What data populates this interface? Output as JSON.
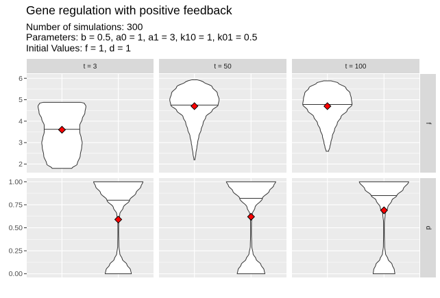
{
  "title": "Gene regulation with positive feedback",
  "subtitle_lines": [
    "Number of simulations: 300",
    "Parameters: b = 0.5, a0 = 1, a1 = 3, k10 = 1, k01 = 0.5",
    "Initial Values: f = 1, d = 1"
  ],
  "colors": {
    "panel_bg": "#ebebeb",
    "strip_bg": "#d9d9d9",
    "grid": "#ffffff",
    "violin_fill": "#ffffff",
    "violin_line": "#333333",
    "mean_marker": "#ff0000"
  },
  "chart_data": {
    "type": "violin",
    "facet_columns": [
      "t = 3",
      "t = 50",
      "t = 100"
    ],
    "facet_rows": [
      "f",
      "d"
    ],
    "rows": [
      {
        "name": "f",
        "ylim": [
          1.6,
          6.2
        ],
        "yticks": [
          2,
          3,
          4,
          5,
          6
        ],
        "ytick_labels": [
          "2",
          "3",
          "4",
          "5",
          "6"
        ],
        "x_position": "left",
        "panels": [
          {
            "column": "t = 3",
            "mean": 3.6,
            "median": 3.62,
            "profile": [
              [
                1.8,
                0.4
              ],
              [
                2.0,
                0.62
              ],
              [
                2.4,
                0.74
              ],
              [
                2.8,
                0.8
              ],
              [
                3.0,
                0.82
              ],
              [
                3.2,
                0.78
              ],
              [
                3.5,
                0.72
              ],
              [
                3.8,
                0.72
              ],
              [
                4.1,
                0.82
              ],
              [
                4.4,
                0.93
              ],
              [
                4.7,
                0.97
              ],
              [
                4.85,
                0.9
              ],
              [
                4.88,
                0.75
              ]
            ]
          },
          {
            "column": "t = 50",
            "mean": 4.7,
            "median": 4.75,
            "profile": [
              [
                2.2,
                0.02
              ],
              [
                2.5,
                0.06
              ],
              [
                2.8,
                0.1
              ],
              [
                3.0,
                0.13
              ],
              [
                3.3,
                0.18
              ],
              [
                3.6,
                0.27
              ],
              [
                3.9,
                0.35
              ],
              [
                4.2,
                0.46
              ],
              [
                4.5,
                0.72
              ],
              [
                4.75,
                0.96
              ],
              [
                5.0,
                1.0
              ],
              [
                5.3,
                0.93
              ],
              [
                5.6,
                0.72
              ],
              [
                5.85,
                0.35
              ],
              [
                5.93,
                0.1
              ]
            ]
          },
          {
            "column": "t = 100",
            "mean": 4.7,
            "median": 4.78,
            "profile": [
              [
                2.6,
                0.05
              ],
              [
                2.8,
                0.1
              ],
              [
                3.0,
                0.14
              ],
              [
                3.3,
                0.2
              ],
              [
                3.6,
                0.29
              ],
              [
                3.9,
                0.4
              ],
              [
                4.2,
                0.55
              ],
              [
                4.5,
                0.8
              ],
              [
                4.78,
                1.0
              ],
              [
                5.05,
                0.97
              ],
              [
                5.3,
                0.92
              ],
              [
                5.55,
                0.75
              ],
              [
                5.8,
                0.42
              ],
              [
                5.88,
                0.15
              ]
            ]
          }
        ]
      },
      {
        "name": "d",
        "ylim": [
          -0.04,
          1.04
        ],
        "yticks": [
          0,
          0.25,
          0.5,
          0.75,
          1
        ],
        "ytick_labels": [
          "0.00",
          "0.25",
          "0.50",
          "0.75",
          "1.00"
        ],
        "x_position": "right",
        "panels": [
          {
            "column": "t = 3",
            "mean": 0.59,
            "median": 0.8,
            "profile": [
              [
                0.0,
                0.53
              ],
              [
                0.04,
                0.5
              ],
              [
                0.1,
                0.35
              ],
              [
                0.16,
                0.16
              ],
              [
                0.22,
                0.06
              ],
              [
                0.3,
                0.025
              ],
              [
                0.45,
                0.015
              ],
              [
                0.55,
                0.018
              ],
              [
                0.65,
                0.06
              ],
              [
                0.72,
                0.2
              ],
              [
                0.8,
                0.46
              ],
              [
                0.88,
                0.72
              ],
              [
                0.95,
                0.92
              ],
              [
                1.0,
                1.0
              ]
            ]
          },
          {
            "column": "t = 50",
            "mean": 0.62,
            "median": 0.82,
            "profile": [
              [
                0.0,
                0.56
              ],
              [
                0.04,
                0.53
              ],
              [
                0.1,
                0.4
              ],
              [
                0.16,
                0.2
              ],
              [
                0.22,
                0.08
              ],
              [
                0.3,
                0.03
              ],
              [
                0.45,
                0.016
              ],
              [
                0.55,
                0.018
              ],
              [
                0.65,
                0.05
              ],
              [
                0.72,
                0.16
              ],
              [
                0.82,
                0.46
              ],
              [
                0.9,
                0.74
              ],
              [
                0.96,
                0.92
              ],
              [
                1.0,
                1.0
              ]
            ]
          },
          {
            "column": "t = 100",
            "mean": 0.69,
            "median": 0.85,
            "profile": [
              [
                0.0,
                0.44
              ],
              [
                0.04,
                0.42
              ],
              [
                0.1,
                0.33
              ],
              [
                0.16,
                0.16
              ],
              [
                0.22,
                0.06
              ],
              [
                0.3,
                0.025
              ],
              [
                0.45,
                0.014
              ],
              [
                0.55,
                0.016
              ],
              [
                0.65,
                0.05
              ],
              [
                0.72,
                0.15
              ],
              [
                0.8,
                0.32
              ],
              [
                0.85,
                0.52
              ],
              [
                0.92,
                0.78
              ],
              [
                1.0,
                1.0
              ]
            ]
          }
        ]
      }
    ]
  }
}
